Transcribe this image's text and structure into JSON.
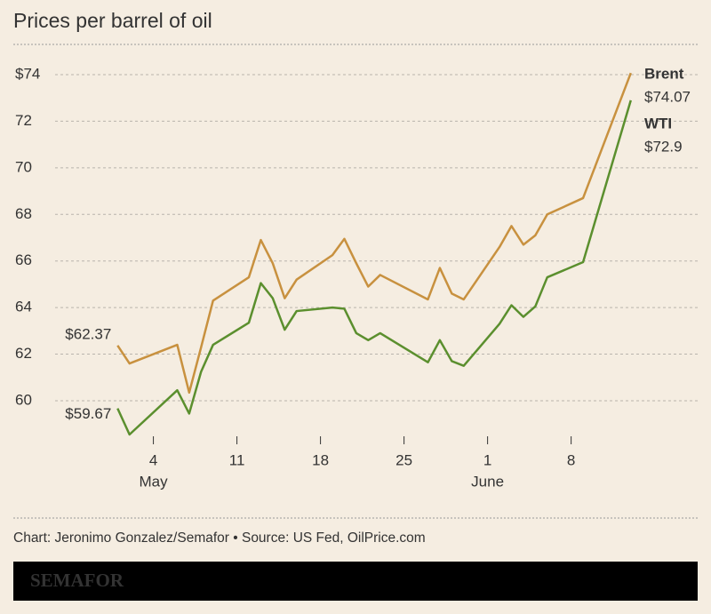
{
  "chart_data": {
    "type": "line",
    "title": "Prices per barrel of oil",
    "x": [
      "05-01",
      "05-02",
      "05-06",
      "05-07",
      "05-08",
      "05-09",
      "05-12",
      "05-13",
      "05-14",
      "05-15",
      "05-16",
      "05-19",
      "05-20",
      "05-21",
      "05-22",
      "05-23",
      "05-27",
      "05-28",
      "05-29",
      "05-30",
      "06-02",
      "06-03",
      "06-04",
      "06-05",
      "06-06",
      "06-09",
      "06-13"
    ],
    "series": [
      {
        "name": "Brent",
        "color": "#c8913f",
        "values": [
          62.37,
          61.6,
          62.4,
          60.35,
          62.3,
          64.3,
          65.3,
          66.9,
          65.9,
          64.4,
          65.2,
          66.25,
          66.95,
          65.9,
          64.9,
          65.4,
          64.35,
          65.7,
          64.6,
          64.35,
          66.6,
          67.5,
          66.7,
          67.1,
          68.0,
          68.7,
          74.07
        ],
        "value_labels": [
          "$62.37",
          null,
          null,
          null,
          null,
          null,
          null,
          null,
          null,
          null,
          null,
          null,
          null,
          null,
          null,
          null,
          null,
          null,
          null,
          null,
          null,
          null,
          null,
          null,
          null,
          null,
          "$74.07"
        ]
      },
      {
        "name": "WTI",
        "color": "#5b8f2e",
        "values": [
          59.67,
          58.55,
          60.45,
          59.45,
          61.25,
          62.4,
          63.35,
          65.05,
          64.4,
          63.05,
          63.85,
          64.0,
          63.95,
          62.9,
          62.6,
          62.9,
          61.65,
          62.6,
          61.7,
          61.5,
          63.3,
          64.1,
          63.6,
          64.05,
          65.3,
          65.95,
          72.9
        ],
        "value_labels": [
          "$59.67",
          null,
          null,
          null,
          null,
          null,
          null,
          null,
          null,
          null,
          null,
          null,
          null,
          null,
          null,
          null,
          null,
          null,
          null,
          null,
          null,
          null,
          null,
          null,
          null,
          null,
          "$72.9"
        ]
      }
    ],
    "xlim": [
      "04-28",
      "06-17"
    ],
    "xticks": [
      {
        "value": "05-04",
        "label": "4"
      },
      {
        "value": "05-11",
        "label": "11"
      },
      {
        "value": "05-18",
        "label": "18"
      },
      {
        "value": "05-25",
        "label": "25"
      },
      {
        "value": "06-01",
        "label": "1"
      },
      {
        "value": "06-08",
        "label": "8"
      }
    ],
    "month_labels": [
      {
        "value": "05-04",
        "label": "May"
      },
      {
        "value": "06-01",
        "label": "June"
      }
    ],
    "ylim": [
      58,
      75
    ],
    "yticks": [
      60,
      62,
      64,
      66,
      68,
      70,
      72,
      {
        "value": 74,
        "label": "$74"
      }
    ],
    "grid": true,
    "source": "Chart: Jeronimo Gonzalez/Semafor • Source: US Fed, OilPrice.com"
  },
  "footer": {
    "brand": "SEMAFOR"
  }
}
